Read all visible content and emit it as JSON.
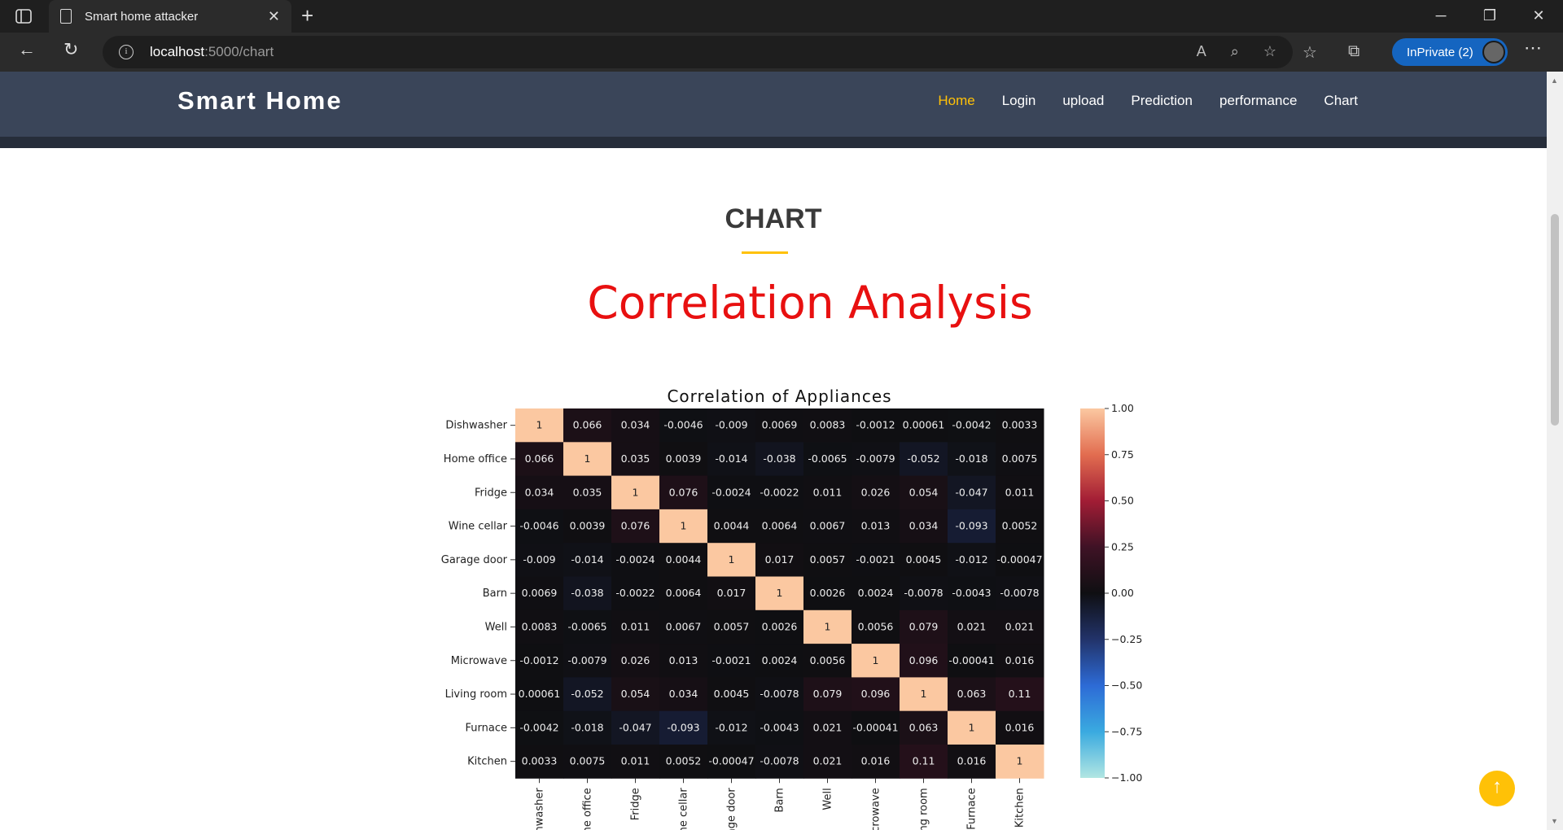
{
  "browser": {
    "tab_title": "Smart home attacker",
    "url_host": "localhost",
    "url_path": ":5000/chart",
    "profile_label": "InPrivate (2)"
  },
  "site": {
    "brand": "Smart Home",
    "menu": [
      {
        "label": "Home",
        "active": true
      },
      {
        "label": "Login",
        "active": false
      },
      {
        "label": "upload",
        "active": false
      },
      {
        "label": "Prediction",
        "active": false
      },
      {
        "label": "performance",
        "active": false
      },
      {
        "label": "Chart",
        "active": false
      }
    ],
    "accent_color": "#ffc107"
  },
  "page": {
    "section_title": "CHART",
    "heading": "Correlation Analysis",
    "heading_color": "#e81010"
  },
  "chart_data": {
    "type": "heatmap",
    "title": "Correlation of Appliances",
    "row_labels": [
      "Dishwasher",
      "Home office",
      "Fridge",
      "Wine cellar",
      "Garage door",
      "Barn",
      "Well",
      "Microwave",
      "Living room",
      "Furnace",
      "Kitchen"
    ],
    "col_labels": [
      "ishwasher",
      "ome office",
      "Fridge",
      "Wine cellar",
      "arage door",
      "Barn",
      "Well",
      "Microwave",
      "iving room",
      "Furnace",
      "Kitchen"
    ],
    "annotations": [
      [
        "1",
        "0.066",
        "0.034",
        "-0.0046",
        "-0.009",
        "0.0069",
        "0.0083",
        "-0.0012",
        "0.00061",
        "-0.0042",
        "0.0033"
      ],
      [
        "0.066",
        "1",
        "0.035",
        "0.0039",
        "-0.014",
        "-0.038",
        "-0.0065",
        "-0.0079",
        "-0.052",
        "-0.018",
        "0.0075"
      ],
      [
        "0.034",
        "0.035",
        "1",
        "0.076",
        "-0.0024",
        "-0.0022",
        "0.011",
        "0.026",
        "0.054",
        "-0.047",
        "0.011"
      ],
      [
        "-0.0046",
        "0.0039",
        "0.076",
        "1",
        "0.0044",
        "0.0064",
        "0.0067",
        "0.013",
        "0.034",
        "-0.093",
        "0.0052"
      ],
      [
        "-0.009",
        "-0.014",
        "-0.0024",
        "0.0044",
        "1",
        "0.017",
        "0.0057",
        "-0.0021",
        "0.0045",
        "-0.012",
        "-0.00047"
      ],
      [
        "0.0069",
        "-0.038",
        "-0.0022",
        "0.0064",
        "0.017",
        "1",
        "0.0026",
        "0.0024",
        "-0.0078",
        "-0.0043",
        "-0.0078"
      ],
      [
        "0.0083",
        "-0.0065",
        "0.011",
        "0.0067",
        "0.0057",
        "0.0026",
        "1",
        "0.0056",
        "0.079",
        "0.021",
        "0.021"
      ],
      [
        "-0.0012",
        "-0.0079",
        "0.026",
        "0.013",
        "-0.0021",
        "0.0024",
        "0.0056",
        "1",
        "0.096",
        "-0.00041",
        "0.016"
      ],
      [
        "0.00061",
        "-0.052",
        "0.054",
        "0.034",
        "0.0045",
        "-0.0078",
        "0.079",
        "0.096",
        "1",
        "0.063",
        "0.11"
      ],
      [
        "-0.0042",
        "-0.018",
        "-0.047",
        "-0.093",
        "-0.012",
        "-0.0043",
        "0.021",
        "-0.00041",
        "0.063",
        "1",
        "0.016"
      ],
      [
        "0.0033",
        "0.0075",
        "0.011",
        "0.0052",
        "-0.00047",
        "-0.0078",
        "0.021",
        "0.016",
        "0.11",
        "0.016",
        "1"
      ]
    ],
    "colorbar": {
      "range": [
        -1.0,
        1.0
      ],
      "ticks": [
        "1.00",
        "0.75",
        "0.50",
        "0.25",
        "0.00",
        "−0.25",
        "−0.50",
        "−0.75",
        "−1.00"
      ],
      "colors": [
        "#fbc8a1",
        "#e26d50",
        "#a21d35",
        "#3f1225",
        "#0f0f12",
        "#22336a",
        "#2d6bd6",
        "#3aaae0",
        "#b1e6e2"
      ]
    },
    "legend": "right"
  }
}
